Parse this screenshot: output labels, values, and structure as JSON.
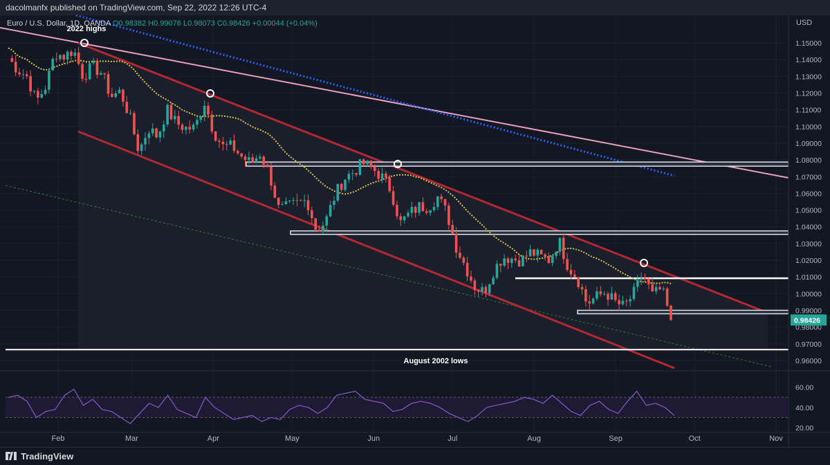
{
  "header": {
    "published": "dacolmanfx published on TradingView.com, Sep 22, 2022 12:26 UTC-4"
  },
  "legend": {
    "symbol": "Euro / U.S. Dollar, 1D, OANDA",
    "ohlc": "O0.98382 H0.99076 L0.98073 C0.98426 +0.00044 (+0.04%)"
  },
  "footer": {
    "brand": "TradingView"
  },
  "colors": {
    "up": "#26a69a",
    "down": "#ef5350",
    "channel": "#b22833",
    "pink_trend": "#e8a0bf",
    "blue_dots": "#2962ff",
    "sma": "#d4c34a",
    "rsi": "#7e57c2",
    "price_badge": "#26a69a"
  },
  "chart_data": [
    {
      "type": "candlestick",
      "title": "Euro / U.S. Dollar, 1D, OANDA",
      "currency": "USD",
      "ylim": [
        0.955,
        1.155
      ],
      "yticks": [
        "1.15000",
        "1.14000",
        "1.13000",
        "1.12000",
        "1.11000",
        "1.10000",
        "1.09000",
        "1.08000",
        "1.07000",
        "1.06000",
        "1.05000",
        "1.04000",
        "1.03000",
        "1.02000",
        "1.01000",
        "1.00000",
        "0.99000",
        "0.98000",
        "0.97000",
        "0.96000"
      ],
      "xticks": [
        "Feb",
        "Mar",
        "Apr",
        "May",
        "Jun",
        "Jul",
        "Aug",
        "Sep",
        "Oct",
        "Nov"
      ],
      "last_price": "0.98426",
      "closes": [
        [
          "2022-01-17",
          1.141
        ],
        [
          "2022-01-20",
          1.134
        ],
        [
          "2022-01-24",
          1.13
        ],
        [
          "2022-01-27",
          1.115
        ],
        [
          "2022-01-31",
          1.124
        ],
        [
          "2022-02-03",
          1.144
        ],
        [
          "2022-02-07",
          1.142
        ],
        [
          "2022-02-10",
          1.146
        ],
        [
          "2022-02-14",
          1.13
        ],
        [
          "2022-02-17",
          1.136
        ],
        [
          "2022-02-21",
          1.132
        ],
        [
          "2022-02-24",
          1.118
        ],
        [
          "2022-02-28",
          1.121
        ],
        [
          "2022-03-03",
          1.106
        ],
        [
          "2022-03-07",
          1.085
        ],
        [
          "2022-03-10",
          1.099
        ],
        [
          "2022-03-14",
          1.094
        ],
        [
          "2022-03-17",
          1.11
        ],
        [
          "2022-03-21",
          1.102
        ],
        [
          "2022-03-24",
          1.099
        ],
        [
          "2022-03-28",
          1.099
        ],
        [
          "2022-03-31",
          1.115
        ],
        [
          "2022-04-04",
          1.097
        ],
        [
          "2022-04-07",
          1.088
        ],
        [
          "2022-04-11",
          1.088
        ],
        [
          "2022-04-14",
          1.082
        ],
        [
          "2022-04-18",
          1.078
        ],
        [
          "2022-04-21",
          1.084
        ],
        [
          "2022-04-25",
          1.071
        ],
        [
          "2022-04-28",
          1.05
        ],
        [
          "2022-05-02",
          1.052
        ],
        [
          "2022-05-05",
          1.054
        ],
        [
          "2022-05-09",
          1.056
        ],
        [
          "2022-05-12",
          1.038
        ],
        [
          "2022-05-16",
          1.043
        ],
        [
          "2022-05-19",
          1.059
        ],
        [
          "2022-05-23",
          1.069
        ],
        [
          "2022-05-26",
          1.073
        ],
        [
          "2022-05-30",
          1.078
        ],
        [
          "2022-06-02",
          1.075
        ],
        [
          "2022-06-06",
          1.07
        ],
        [
          "2022-06-09",
          1.062
        ],
        [
          "2022-06-13",
          1.042
        ],
        [
          "2022-06-16",
          1.048
        ],
        [
          "2022-06-20",
          1.052
        ],
        [
          "2022-06-23",
          1.052
        ],
        [
          "2022-06-27",
          1.058
        ],
        [
          "2022-06-30",
          1.048
        ],
        [
          "2022-07-04",
          1.028
        ],
        [
          "2022-07-07",
          1.016
        ],
        [
          "2022-07-11",
          1.004
        ],
        [
          "2022-07-14",
          1.001
        ],
        [
          "2022-07-18",
          1.014
        ],
        [
          "2022-07-21",
          1.022
        ],
        [
          "2022-07-25",
          1.021
        ],
        [
          "2022-07-28",
          1.02
        ],
        [
          "2022-08-01",
          1.025
        ],
        [
          "2022-08-04",
          1.022
        ],
        [
          "2022-08-08",
          1.02
        ],
        [
          "2022-08-11",
          1.032
        ],
        [
          "2022-08-15",
          1.016
        ],
        [
          "2022-08-18",
          1.009
        ],
        [
          "2022-08-22",
          0.994
        ],
        [
          "2022-08-25",
          0.998
        ],
        [
          "2022-08-29",
          1.001
        ],
        [
          "2022-09-01",
          0.995
        ],
        [
          "2022-09-05",
          0.992
        ],
        [
          "2022-09-08",
          1.0
        ],
        [
          "2022-09-12",
          1.012
        ],
        [
          "2022-09-15",
          0.999
        ],
        [
          "2022-09-19",
          1.003
        ],
        [
          "2022-09-22",
          0.98426
        ]
      ],
      "sma_note": "yellow dotted moving average"
    },
    {
      "type": "line",
      "title": "",
      "ylim": [
        20,
        72
      ],
      "yticks": [
        "60.00",
        "40.00",
        "20.00"
      ],
      "bands": [
        50,
        30
      ],
      "values": [
        50,
        52,
        46,
        30,
        36,
        38,
        52,
        58,
        42,
        48,
        38,
        36,
        30,
        24,
        34,
        44,
        40,
        52,
        38,
        34,
        30,
        50,
        40,
        34,
        28,
        30,
        32,
        26,
        30,
        28,
        38,
        42,
        40,
        34,
        40,
        52,
        54,
        56,
        48,
        46,
        44,
        36,
        38,
        44,
        46,
        44,
        40,
        34,
        30,
        26,
        32,
        40,
        42,
        44,
        46,
        50,
        48,
        44,
        52,
        44,
        36,
        32,
        42,
        46,
        38,
        34,
        46,
        56,
        42,
        44,
        40,
        32
      ]
    }
  ],
  "annotations": {
    "highs_label": "2022 highs",
    "lows_label": "August 2002 lows"
  }
}
